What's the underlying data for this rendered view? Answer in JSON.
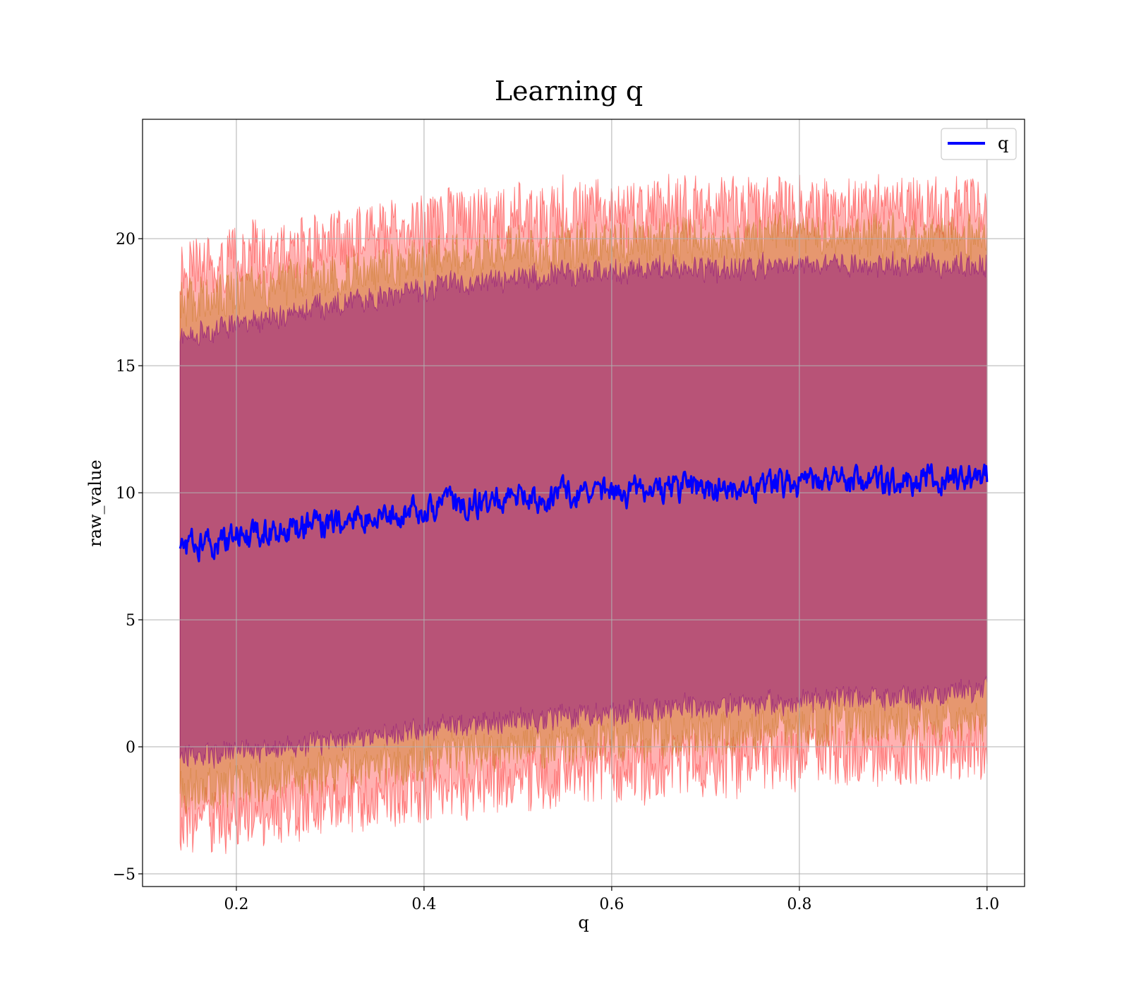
{
  "chart_data": {
    "type": "line",
    "title": "Learning q",
    "xlabel": "q",
    "ylabel": "raw_value",
    "xlim": [
      0.1,
      1.04
    ],
    "ylim": [
      -5.5,
      24.7
    ],
    "x_start": 0.14,
    "x_end": 1.0,
    "xticks": [
      0.2,
      0.4,
      0.6,
      0.8,
      1.0
    ],
    "xtick_labels": [
      "0.2",
      "0.4",
      "0.6",
      "0.8",
      "1.0"
    ],
    "yticks": [
      -5,
      0,
      5,
      10,
      15,
      20
    ],
    "ytick_labels": [
      "−5",
      "0",
      "5",
      "10",
      "15",
      "20"
    ],
    "grid": true,
    "legend": {
      "position": "top-right",
      "entries": [
        {
          "label": "q",
          "color": "#0000ff"
        }
      ]
    },
    "series": [
      {
        "name": "q",
        "role": "mean",
        "color": "#0000ff",
        "x": [
          0.14,
          0.2,
          0.25,
          0.3,
          0.35,
          0.4,
          0.45,
          0.5,
          0.55,
          0.6,
          0.65,
          0.7,
          0.75,
          0.8,
          0.85,
          0.9,
          0.95,
          1.0
        ],
        "y": [
          7.8,
          8.2,
          8.5,
          8.8,
          9.1,
          9.4,
          9.6,
          9.7,
          9.9,
          10.0,
          10.1,
          10.2,
          10.3,
          10.35,
          10.4,
          10.45,
          10.5,
          10.5
        ]
      }
    ],
    "bands": [
      {
        "sigma": 1,
        "color": "#800080",
        "opacity": 0.45,
        "half_width": [
          8.3,
          8.4,
          8.5,
          8.6,
          8.6,
          8.7,
          8.7,
          8.7,
          8.7,
          8.7,
          8.7,
          8.6,
          8.6,
          8.6,
          8.5,
          8.5,
          8.5,
          8.3
        ]
      },
      {
        "sigma": 2,
        "color": "#c8781e",
        "opacity": 0.45,
        "half_width": [
          9.6,
          9.7,
          9.8,
          9.8,
          9.8,
          9.8,
          9.8,
          9.8,
          9.8,
          9.8,
          9.8,
          9.7,
          9.7,
          9.7,
          9.6,
          9.6,
          9.6,
          9.5
        ]
      },
      {
        "sigma": 3,
        "color": "#ff2020",
        "opacity": 0.35,
        "half_width": [
          10.8,
          11.0,
          11.0,
          11.0,
          11.1,
          11.1,
          11.1,
          11.1,
          11.1,
          11.0,
          11.0,
          11.0,
          10.9,
          10.9,
          10.8,
          10.8,
          10.8,
          10.7
        ]
      }
    ]
  }
}
